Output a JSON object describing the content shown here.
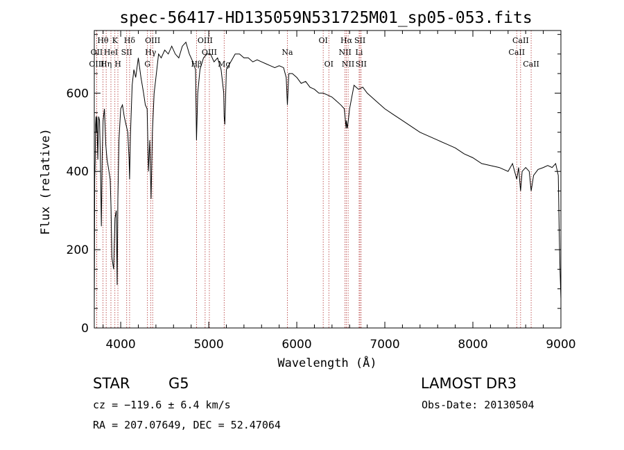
{
  "chart_data": {
    "type": "line",
    "title": "spec-56417-HD135059N531725M01_sp05-053.fits",
    "xlabel": "Wavelength (Å)",
    "ylabel": "Flux (relative)",
    "xlim": [
      3700,
      9000
    ],
    "ylim": [
      0,
      760
    ],
    "x_ticks": [
      4000,
      5000,
      6000,
      7000,
      8000,
      9000
    ],
    "y_ticks": [
      0,
      200,
      400,
      600
    ],
    "series": [
      {
        "name": "flux",
        "x": [
          3700,
          3702,
          3705,
          3710,
          3715,
          3720,
          3725,
          3730,
          3735,
          3740,
          3745,
          3750,
          3760,
          3770,
          3780,
          3790,
          3800,
          3815,
          3830,
          3845,
          3860,
          3880,
          3890,
          3900,
          3920,
          3935,
          3950,
          3960,
          3968,
          3980,
          3990,
          4000,
          4020,
          4040,
          4060,
          4080,
          4095,
          4101,
          4110,
          4130,
          4150,
          4170,
          4200,
          4230,
          4260,
          4280,
          4300,
          4315,
          4330,
          4345,
          4360,
          4380,
          4400,
          4430,
          4460,
          4500,
          4540,
          4580,
          4620,
          4660,
          4700,
          4740,
          4780,
          4820,
          4850,
          4861,
          4875,
          4900,
          4940,
          4980,
          5020,
          5060,
          5100,
          5140,
          5170,
          5175,
          5183,
          5200,
          5250,
          5300,
          5350,
          5400,
          5450,
          5500,
          5550,
          5600,
          5650,
          5700,
          5750,
          5800,
          5850,
          5880,
          5893,
          5910,
          5950,
          6000,
          6050,
          6100,
          6150,
          6200,
          6250,
          6300,
          6350,
          6400,
          6450,
          6500,
          6540,
          6560,
          6563,
          6575,
          6600,
          6650,
          6700,
          6750,
          6800,
          6900,
          7000,
          7100,
          7200,
          7300,
          7400,
          7500,
          7600,
          7700,
          7800,
          7900,
          8000,
          8100,
          8200,
          8300,
          8400,
          8450,
          8498,
          8520,
          8542,
          8560,
          8600,
          8640,
          8662,
          8690,
          8740,
          8800,
          8850,
          8900,
          8940,
          8960,
          8970,
          8980,
          8990,
          9000
        ],
        "values": [
          60,
          170,
          380,
          430,
          520,
          540,
          500,
          540,
          480,
          430,
          500,
          540,
          530,
          420,
          260,
          440,
          530,
          560,
          470,
          430,
          410,
          380,
          310,
          180,
          150,
          280,
          300,
          110,
          330,
          480,
          520,
          560,
          570,
          540,
          520,
          500,
          430,
          380,
          490,
          620,
          660,
          640,
          690,
          640,
          600,
          570,
          560,
          400,
          480,
          330,
          500,
          600,
          640,
          700,
          690,
          710,
          700,
          720,
          700,
          690,
          720,
          730,
          700,
          680,
          660,
          480,
          600,
          660,
          690,
          700,
          700,
          680,
          690,
          660,
          600,
          540,
          520,
          660,
          680,
          700,
          700,
          690,
          690,
          680,
          685,
          680,
          675,
          670,
          665,
          670,
          665,
          640,
          570,
          650,
          650,
          640,
          625,
          630,
          615,
          610,
          600,
          600,
          595,
          590,
          580,
          570,
          560,
          510,
          530,
          510,
          560,
          620,
          610,
          615,
          600,
          580,
          560,
          545,
          530,
          515,
          500,
          490,
          480,
          470,
          460,
          445,
          435,
          420,
          415,
          410,
          400,
          420,
          380,
          410,
          350,
          400,
          410,
          400,
          350,
          390,
          405,
          410,
          415,
          410,
          420,
          400,
          390,
          250,
          150,
          75
        ]
      }
    ],
    "line_markers": [
      {
        "label": "Hθ",
        "wavelength": 3798,
        "row": 1
      },
      {
        "label": "OII",
        "wavelength": 3727,
        "row": 2
      },
      {
        "label": "OIII",
        "wavelength": 3727,
        "row": 3
      },
      {
        "label": "K",
        "wavelength": 3934,
        "row": 1
      },
      {
        "label": "HeI",
        "wavelength": 3889,
        "row": 2
      },
      {
        "label": "Hη",
        "wavelength": 3835,
        "row": 3
      },
      {
        "label": "Hδ",
        "wavelength": 4101,
        "row": 1
      },
      {
        "label": "SII",
        "wavelength": 4068,
        "row": 2
      },
      {
        "label": "H",
        "wavelength": 3968,
        "row": 3
      },
      {
        "label": "OIII",
        "wavelength": 4363,
        "row": 1
      },
      {
        "label": "Hγ",
        "wavelength": 4340,
        "row": 2
      },
      {
        "label": "G",
        "wavelength": 4304,
        "row": 3
      },
      {
        "label": "OIII",
        "wavelength": 4959,
        "row": 1
      },
      {
        "label": "OIII",
        "wavelength": 5007,
        "row": 2
      },
      {
        "label": "Hβ",
        "wavelength": 4861,
        "row": 3
      },
      {
        "label": "Mg",
        "wavelength": 5175,
        "row": 3
      },
      {
        "label": "Na",
        "wavelength": 5893,
        "row": 2
      },
      {
        "label": "OI",
        "wavelength": 6300,
        "row": 1
      },
      {
        "label": "OI",
        "wavelength": 6364,
        "row": 3
      },
      {
        "label": "Hα",
        "wavelength": 6563,
        "row": 1
      },
      {
        "label": "SII",
        "wavelength": 6717,
        "row": 1
      },
      {
        "label": "NII",
        "wavelength": 6548,
        "row": 2
      },
      {
        "label": "Li",
        "wavelength": 6708,
        "row": 2
      },
      {
        "label": "NII",
        "wavelength": 6583,
        "row": 3
      },
      {
        "label": "SII",
        "wavelength": 6731,
        "row": 3
      },
      {
        "label": "CaII",
        "wavelength": 8542,
        "row": 1
      },
      {
        "label": "CaII",
        "wavelength": 8498,
        "row": 2
      },
      {
        "label": "CaII",
        "wavelength": 8662,
        "row": 3
      }
    ],
    "colors": {
      "spectrum": "#000000",
      "markers": "#b03030",
      "axes": "#000000"
    }
  },
  "info": {
    "object_class": "STAR",
    "subclass": "G5",
    "survey": "LAMOST DR3",
    "redshift": "cz = −119.6 ± 6.4 km/s",
    "obs_date": "Obs-Date: 20130504",
    "coords": "RA = 207.07649, DEC =  52.47064"
  }
}
